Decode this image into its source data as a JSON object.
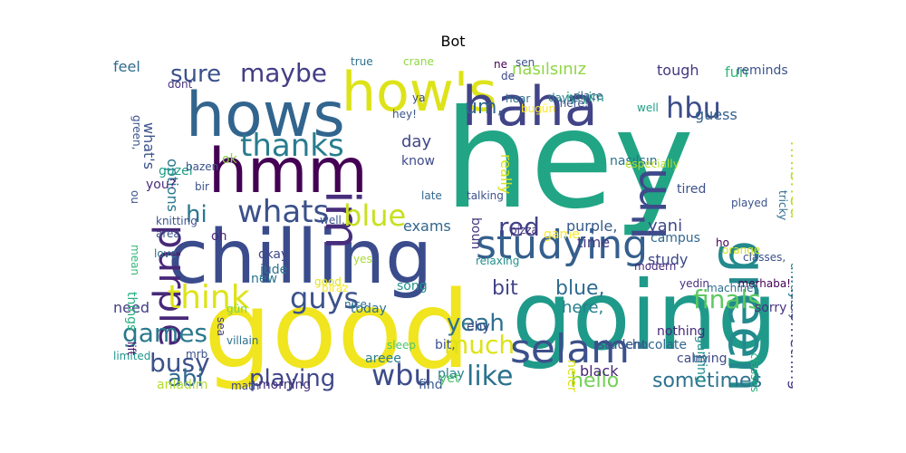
{
  "title": "Bot",
  "words": [
    {
      "text": "hey",
      "color": "#21a585"
    },
    {
      "text": "going",
      "color": "#1f9a8a"
    },
    {
      "text": "good",
      "color": "#f0e51e"
    },
    {
      "text": "chilling",
      "color": "#3b4c8c"
    },
    {
      "text": "hows",
      "color": "#32658e"
    },
    {
      "text": "hmm",
      "color": "#440154"
    },
    {
      "text": "how's",
      "color": "#dde318"
    },
    {
      "text": "haha",
      "color": "#414487"
    },
    {
      "text": "green",
      "color": "#238a8d"
    },
    {
      "text": "im",
      "color": "#472d7b"
    },
    {
      "text": "I'm",
      "color": "#3e4a89"
    },
    {
      "text": "studying",
      "color": "#355f8d"
    },
    {
      "text": "selam",
      "color": "#3c508b"
    },
    {
      "text": "purple",
      "color": "#482878"
    },
    {
      "text": "thanks",
      "color": "#287c8e"
    },
    {
      "text": "whats",
      "color": "#3b518b"
    },
    {
      "text": "blue",
      "color": "#c8e020"
    },
    {
      "text": "red",
      "color": "#414287"
    },
    {
      "text": "finals",
      "color": "#5ec962"
    },
    {
      "text": "think",
      "color": "#dde318"
    },
    {
      "text": "guys",
      "color": "#3b528b"
    },
    {
      "text": "wbu",
      "color": "#3e4c8a"
    },
    {
      "text": "like",
      "color": "#2c728e"
    },
    {
      "text": "much",
      "color": "#dde318"
    },
    {
      "text": "yeah",
      "color": "#2d708e"
    },
    {
      "text": "playing",
      "color": "#3f4788"
    },
    {
      "text": "games",
      "color": "#2a788e"
    },
    {
      "text": "busy",
      "color": "#3b518b"
    },
    {
      "text": "abi",
      "color": "#2f6b8e"
    },
    {
      "text": "hbu",
      "color": "#3d4d8a"
    },
    {
      "text": "maybe",
      "color": "#433e85"
    },
    {
      "text": "sure",
      "color": "#3b528b"
    },
    {
      "text": "nasılsınız",
      "color": "#8fd744"
    },
    {
      "text": "finished",
      "color": "#b5de2b"
    },
    {
      "text": "hi",
      "color": "#2a788e"
    },
    {
      "text": "bit",
      "color": "#414487"
    },
    {
      "text": "blue,",
      "color": "#2f6c8e"
    },
    {
      "text": "hello",
      "color": "#73d056"
    },
    {
      "text": "sometimes",
      "color": "#2c738e"
    },
    {
      "text": "something",
      "color": "#433d84"
    },
    {
      "text": "yani",
      "color": "#3f4889"
    },
    {
      "text": "um,",
      "color": "#31668e"
    },
    {
      "text": "tough",
      "color": "#453781"
    },
    {
      "text": "fun",
      "color": "#35b779"
    },
    {
      "text": "reminds",
      "color": "#3b528b"
    },
    {
      "text": "feel",
      "color": "#2f6b8e"
    },
    {
      "text": "guess",
      "color": "#34618d"
    },
    {
      "text": "nasılsın",
      "color": "#2c728e"
    },
    {
      "text": "tired",
      "color": "#3b528b"
    },
    {
      "text": "campus",
      "color": "#31668e"
    },
    {
      "text": "study",
      "color": "#3f4889"
    },
    {
      "text": "sorry",
      "color": "#46337e"
    },
    {
      "text": "always",
      "color": "#27808e"
    },
    {
      "text": "game",
      "color": "#fde725"
    },
    {
      "text": "time",
      "color": "#443983"
    },
    {
      "text": "purple,",
      "color": "#375b8d"
    },
    {
      "text": "day",
      "color": "#3f4788"
    },
    {
      "text": "know",
      "color": "#3e4a89"
    },
    {
      "text": "boun",
      "color": "#453882"
    },
    {
      "text": "iyiyim",
      "color": "#1fa187"
    },
    {
      "text": "exams",
      "color": "#31668e"
    },
    {
      "text": "here,",
      "color": "#27808e"
    },
    {
      "text": "today",
      "color": "#2e6f8e"
    },
    {
      "text": "need",
      "color": "#433e85"
    },
    {
      "text": "things",
      "color": "#29af7f"
    },
    {
      "text": "song",
      "color": "#21918c"
    },
    {
      "text": "new",
      "color": "#2b758e"
    },
    {
      "text": "what's",
      "color": "#3b528b"
    },
    {
      "text": "options",
      "color": "#2a778e"
    },
    {
      "text": "güzel",
      "color": "#1f9e89"
    },
    {
      "text": "you?",
      "color": "#472c7a"
    },
    {
      "text": "ok",
      "color": "#86d549"
    },
    {
      "text": "oh",
      "color": "#482878"
    },
    {
      "text": "okay",
      "color": "#404688"
    },
    {
      "text": "jude",
      "color": "#2c738e"
    },
    {
      "text": "good,",
      "color": "#dfe318"
    },
    {
      "text": "nice",
      "color": "#2d718e"
    },
    {
      "text": "areee",
      "color": "#287d8e"
    },
    {
      "text": "really",
      "color": "#d8e219"
    },
    {
      "text": "gaming",
      "color": "#20938c"
    },
    {
      "text": "ehy",
      "color": "#3e4989"
    },
    {
      "text": "black",
      "color": "#482475"
    },
    {
      "text": "student",
      "color": "#3b528b"
    },
    {
      "text": "chocolate",
      "color": "#32658e"
    },
    {
      "text": "calming",
      "color": "#3e4a89"
    },
    {
      "text": "nothing",
      "color": "#482979"
    },
    {
      "text": "bit,",
      "color": "#3b528b"
    },
    {
      "text": "play",
      "color": "#27808e"
    },
    {
      "text": "find",
      "color": "#38588c"
    },
    {
      "text": "yet",
      "color": "#4ac16d"
    },
    {
      "text": "neler",
      "color": "#dce319"
    },
    {
      "text": "try",
      "color": "#2f6b8e"
    },
    {
      "text": "classes",
      "color": "#26ad81"
    },
    {
      "text": "morning",
      "color": "#46327e"
    },
    {
      "text": "anladım",
      "color": "#b2dd2d"
    },
    {
      "text": "limited",
      "color": "#1f968b"
    },
    {
      "text": "mrb",
      "color": "#3b518b"
    },
    {
      "text": "villain",
      "color": "#2d708e"
    },
    {
      "text": "sea",
      "color": "#424086"
    },
    {
      "text": "sleep",
      "color": "#50c46a"
    },
    {
      "text": "math",
      "color": "#3f4889"
    },
    {
      "text": "gün",
      "color": "#7ad151"
    },
    {
      "text": "lift",
      "color": "#471063"
    },
    {
      "text": "lately",
      "color": "#3b528b"
    },
    {
      "text": "merhaba!",
      "color": "#440154"
    },
    {
      "text": "orange",
      "color": "#d2e21b"
    },
    {
      "text": "machine",
      "color": "#2e6e8e"
    },
    {
      "text": "classes,",
      "color": "#3b528b"
    },
    {
      "text": "yedin",
      "color": "#46327e"
    },
    {
      "text": "modern",
      "color": "#472a7a"
    },
    {
      "text": "ho",
      "color": "#440154"
    },
    {
      "text": "played",
      "color": "#3b528b"
    },
    {
      "text": "tricky",
      "color": "#2d708e"
    },
    {
      "text": "well",
      "color": "#1fa188"
    },
    {
      "text": "especially",
      "color": "#b5de2b"
    },
    {
      "text": "bugün",
      "color": "#fde725"
    },
    {
      "text": "ne",
      "color": "#440154"
    },
    {
      "text": "talking",
      "color": "#3b528b"
    },
    {
      "text": "pizza",
      "color": "#46337e"
    },
    {
      "text": "relaxing",
      "color": "#21918c"
    },
    {
      "text": "yes",
      "color": "#a8db34"
    },
    {
      "text": "late",
      "color": "#31688e"
    },
    {
      "text": "hey!",
      "color": "#3a548c"
    },
    {
      "text": "ya",
      "color": "#3e4a89"
    },
    {
      "text": "days",
      "color": "#27808e"
    },
    {
      "text": "place",
      "color": "#3b528b"
    },
    {
      "text": "hear",
      "color": "#2d708e"
    },
    {
      "text": "there!",
      "color": "#3b528b"
    },
    {
      "text": "de",
      "color": "#3e4a89"
    },
    {
      "text": "sen",
      "color": "#3b528b"
    },
    {
      "text": "crane",
      "color": "#8fd744"
    },
    {
      "text": "true",
      "color": "#2d708e"
    },
    {
      "text": "dont",
      "color": "#46327e"
    },
    {
      "text": "green,",
      "color": "#3b528b"
    },
    {
      "text": "ou",
      "color": "#3b528b"
    },
    {
      "text": "mean",
      "color": "#35b779"
    },
    {
      "text": "knitting",
      "color": "#3b528b"
    },
    {
      "text": "area",
      "color": "#3b528b"
    },
    {
      "text": "love",
      "color": "#2d708e"
    },
    {
      "text": "well,",
      "color": "#3b528b"
    },
    {
      "text": "bazen",
      "color": "#3b528b"
    },
    {
      "text": "bir",
      "color": "#3b528b"
    },
    {
      "text": "biraz",
      "color": "#fde725"
    },
    {
      "text": "good,",
      "color": "#31688e"
    }
  ]
}
